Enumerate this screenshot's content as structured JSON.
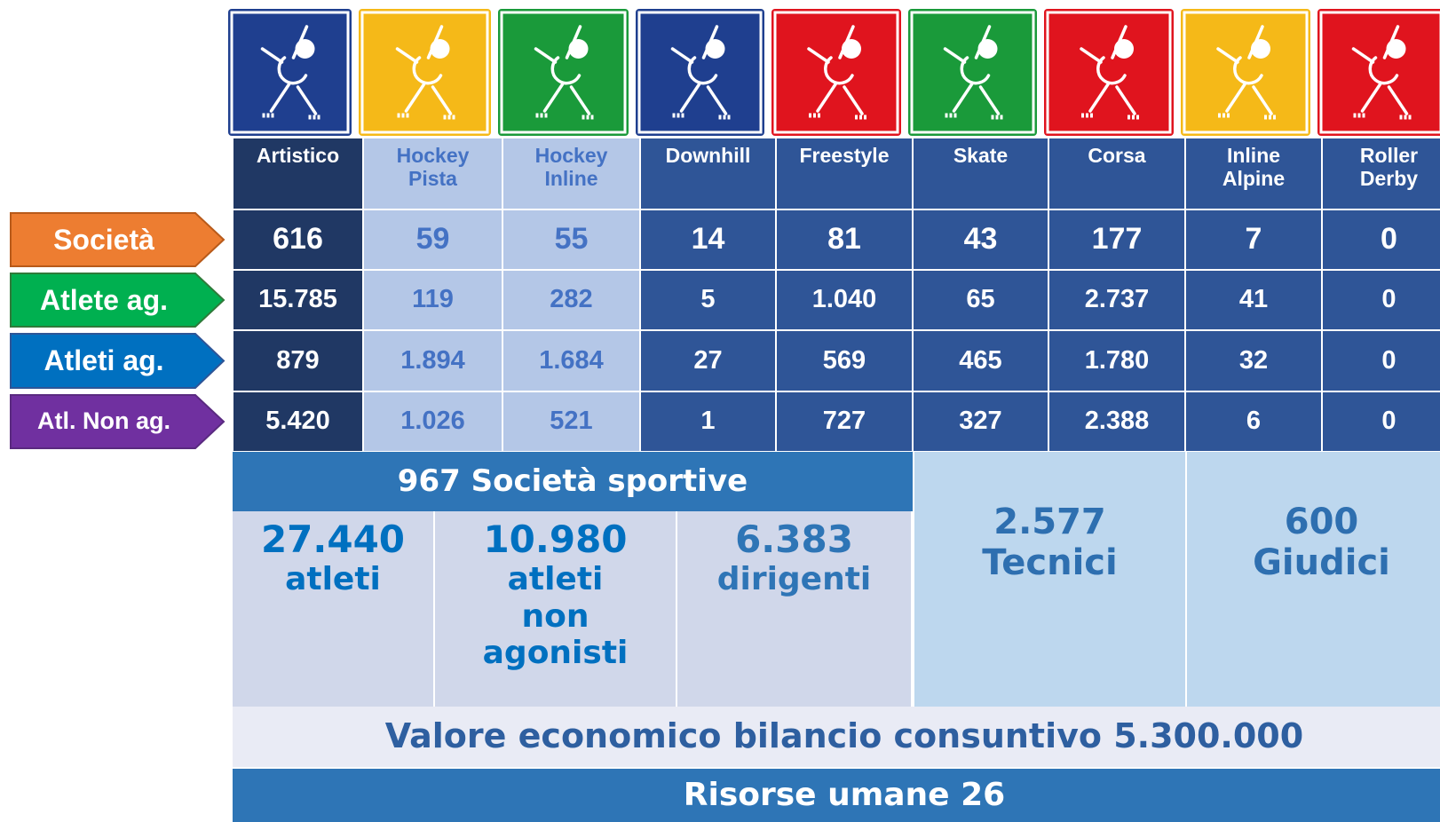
{
  "columns": [
    [
      "Artistico"
    ],
    [
      "Hockey",
      "Pista"
    ],
    [
      "Hockey",
      "Inline"
    ],
    [
      "Downhill"
    ],
    [
      "Freestyle"
    ],
    [
      "Skate"
    ],
    [
      "Corsa"
    ],
    [
      "Inline",
      "Alpine"
    ],
    [
      "Roller",
      "Derby"
    ]
  ],
  "rows": [
    {
      "label": "Società",
      "values": [
        "616",
        "59",
        "55",
        "14",
        "81",
        "43",
        "177",
        "7",
        "0"
      ]
    },
    {
      "label": "Atlete ag.",
      "values": [
        "15.785",
        "119",
        "282",
        "5",
        "1.040",
        "65",
        "2.737",
        "41",
        "0"
      ]
    },
    {
      "label": "Atleti ag.",
      "values": [
        "879",
        "1.894",
        "1.684",
        "27",
        "569",
        "465",
        "1.780",
        "32",
        "0"
      ]
    },
    {
      "label": "Atl. Non ag.",
      "values": [
        "5.420",
        "1.026",
        "521",
        "1",
        "727",
        "327",
        "2.388",
        "6",
        "0"
      ]
    }
  ],
  "summary": {
    "title": "967 Società sportive",
    "cells": [
      [
        "27.440",
        "atleti"
      ],
      [
        "10.980",
        "atleti",
        "non",
        "agonisti"
      ],
      [
        "6.383",
        "dirigenti"
      ]
    ],
    "side": [
      [
        "2.577",
        "Tecnici"
      ],
      [
        "600",
        "Giudici"
      ]
    ],
    "valore": "Valore economico bilancio consuntivo 5.300.000",
    "risorse": "Risorse umane 26"
  }
}
